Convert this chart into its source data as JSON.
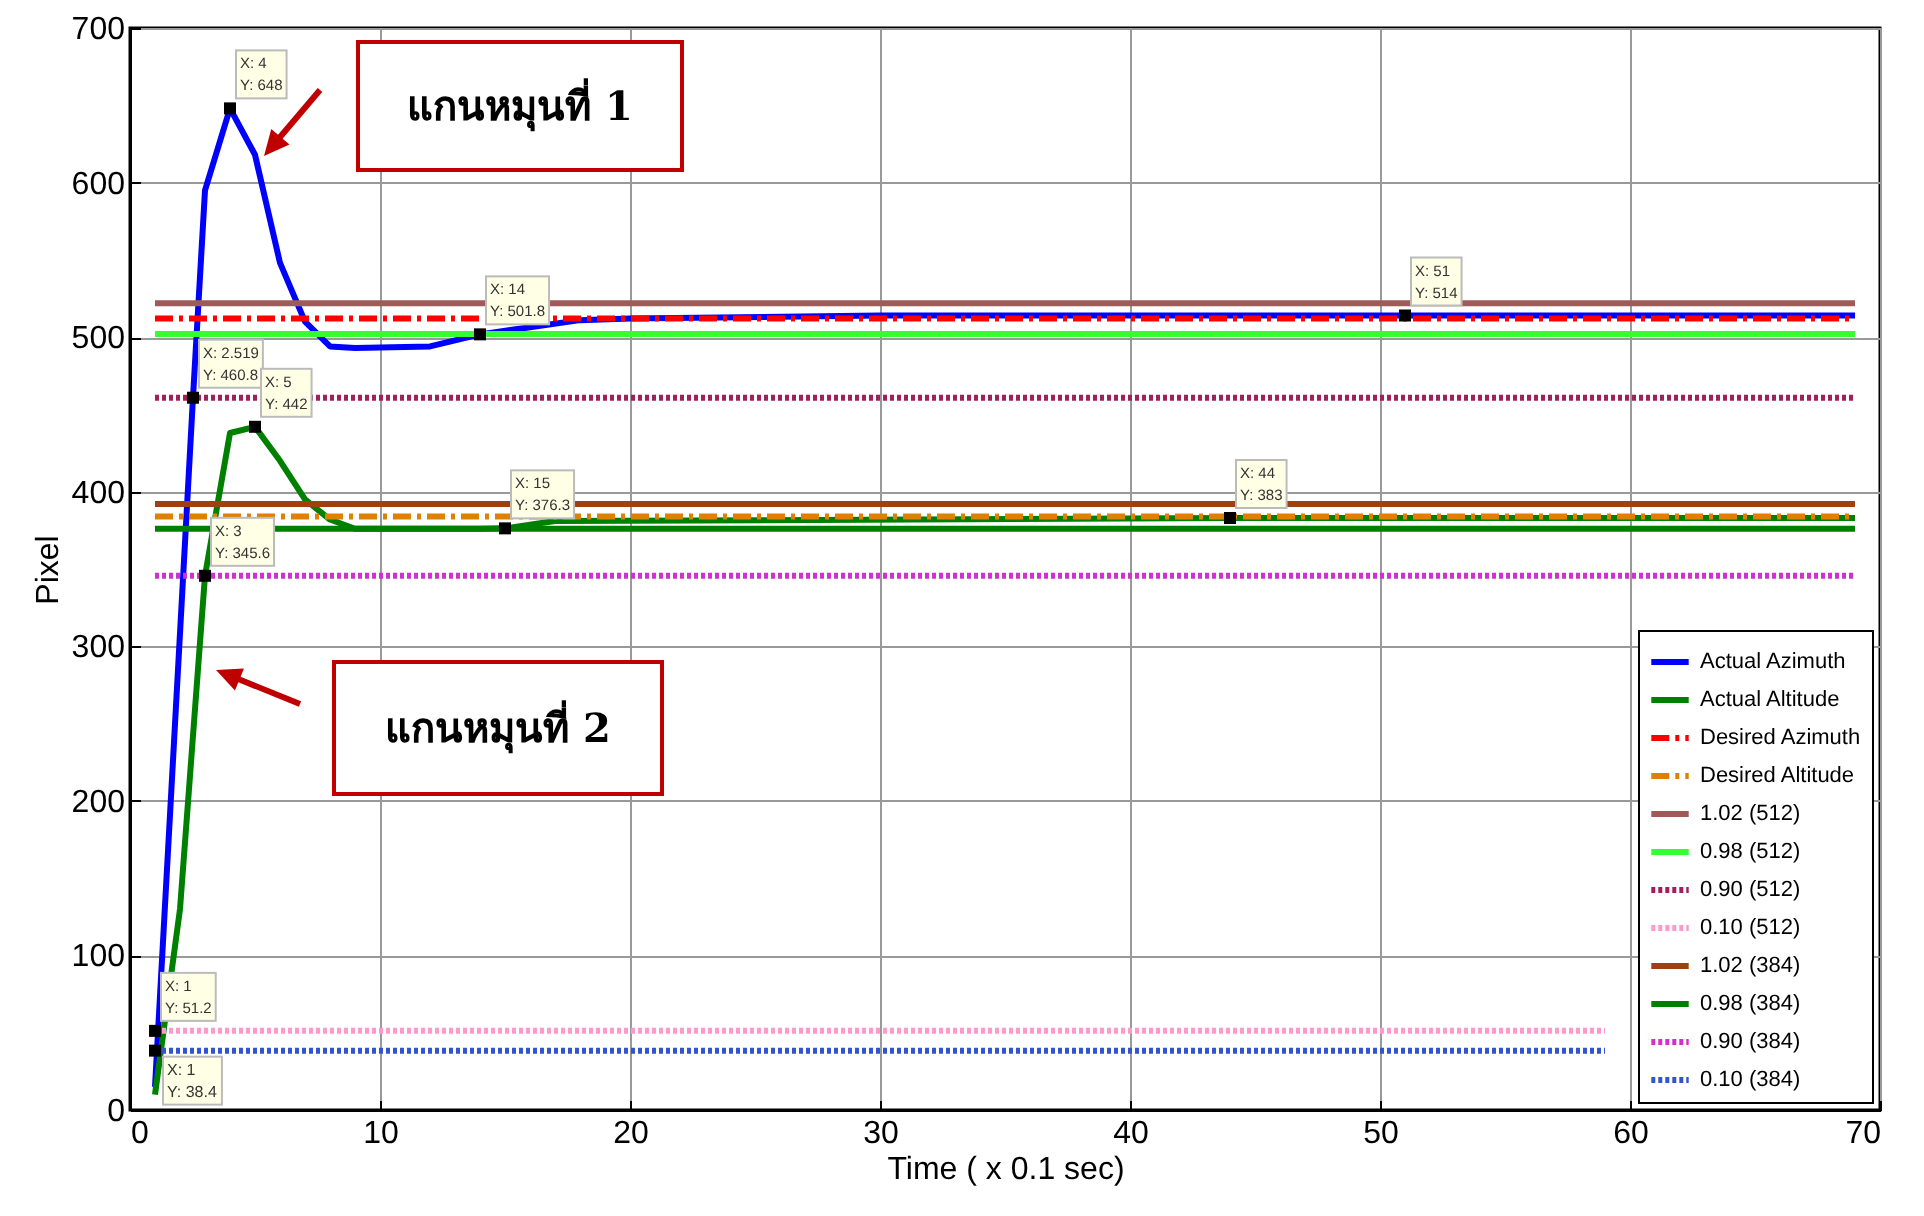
{
  "chart_data": {
    "type": "line",
    "xlabel": "Time ( x 0.1 sec)",
    "ylabel": "Pixel",
    "xlim": [
      0,
      70
    ],
    "xticks": [
      0,
      10,
      20,
      30,
      40,
      50,
      60,
      70
    ],
    "ylim": [
      0,
      700
    ],
    "yticks": [
      0,
      100,
      200,
      300,
      400,
      500,
      600,
      700
    ],
    "grid": true,
    "legend": "bottom right",
    "series": [
      {
        "name": "Actual Azimuth",
        "color": "#0000ff",
        "line_style": "solid",
        "x": [
          1,
          2.519,
          3,
          4,
          5,
          6,
          7,
          8,
          9,
          12,
          14,
          18,
          20,
          30,
          51,
          69
        ],
        "values": [
          15,
          460.8,
          595,
          648,
          618,
          548,
          510,
          494,
          493,
          494,
          501.8,
          511,
          512,
          514,
          514,
          514
        ]
      },
      {
        "name": "Actual Altitude",
        "color": "#008000",
        "line_style": "solid",
        "x": [
          1,
          2,
          3,
          4,
          5,
          6,
          7,
          8,
          9,
          14,
          15,
          17,
          44,
          69
        ],
        "values": [
          10,
          130,
          345.6,
          438,
          442,
          420,
          395,
          382,
          376,
          376,
          376.3,
          381,
          383,
          383
        ]
      },
      {
        "name": "Desired Azimuth",
        "color": "#ff0000",
        "line_style": "dashed",
        "x": [
          1,
          69
        ],
        "values": [
          512,
          512
        ]
      },
      {
        "name": "Desired Altitude",
        "color": "#e08000",
        "line_style": "dashed",
        "x": [
          1,
          69
        ],
        "values": [
          384,
          384
        ]
      },
      {
        "name": "1.02 (512)",
        "color": "#a05a5a",
        "line_style": "solid",
        "x": [
          1,
          69
        ],
        "values": [
          522,
          522
        ]
      },
      {
        "name": "0.98 (512)",
        "color": "#33ff33",
        "line_style": "solid",
        "x": [
          1,
          69
        ],
        "values": [
          502,
          502
        ]
      },
      {
        "name": "0.90 (512)",
        "color": "#a0205a",
        "line_style": "dotted",
        "x": [
          1,
          69
        ],
        "values": [
          460.8,
          460.8
        ]
      },
      {
        "name": "0.10 (512)",
        "color": "#ff99cc",
        "line_style": "dotted",
        "x": [
          1,
          59
        ],
        "values": [
          51.2,
          51.2
        ]
      },
      {
        "name": "1.02 (384)",
        "color": "#a04010",
        "line_style": "solid",
        "x": [
          1,
          69
        ],
        "values": [
          392,
          392
        ]
      },
      {
        "name": "0.98 (384)",
        "color": "#008000",
        "line_style": "solid",
        "x": [
          1,
          69
        ],
        "values": [
          376,
          376
        ]
      },
      {
        "name": "0.90 (384)",
        "color": "#cc33cc",
        "line_style": "dotted",
        "x": [
          1,
          69
        ],
        "values": [
          345.6,
          345.6
        ]
      },
      {
        "name": "0.10 (384)",
        "color": "#3355cc",
        "line_style": "dotted",
        "x": [
          1,
          59
        ],
        "values": [
          38.4,
          38.4
        ]
      }
    ],
    "annotations": [
      "แกนหมุนที่ 1",
      "แกนหมุนที่ 2",
      {
        "text": "X: 4\nY: 648",
        "x": 4,
        "y": 648
      },
      {
        "text": "X: 2.519\nY: 460.8",
        "x": 2.519,
        "y": 460.8
      },
      {
        "text": "X: 5\nY: 442",
        "x": 5,
        "y": 442
      },
      {
        "text": "X: 3\nY: 345.6",
        "x": 3,
        "y": 345.6
      },
      {
        "text": "X: 14\nY: 501.8",
        "x": 14,
        "y": 501.8
      },
      {
        "text": "X: 15\nY: 376.3",
        "x": 15,
        "y": 376.3
      },
      {
        "text": "X: 51\nY: 514",
        "x": 51,
        "y": 514
      },
      {
        "text": "X: 44\nY: 383",
        "x": 44,
        "y": 383
      },
      {
        "text": "X: 1\nY: 51.2",
        "x": 1,
        "y": 51.2
      },
      {
        "text": "X: 1\nY: 38.4",
        "x": 1,
        "y": 38.4
      }
    ]
  }
}
